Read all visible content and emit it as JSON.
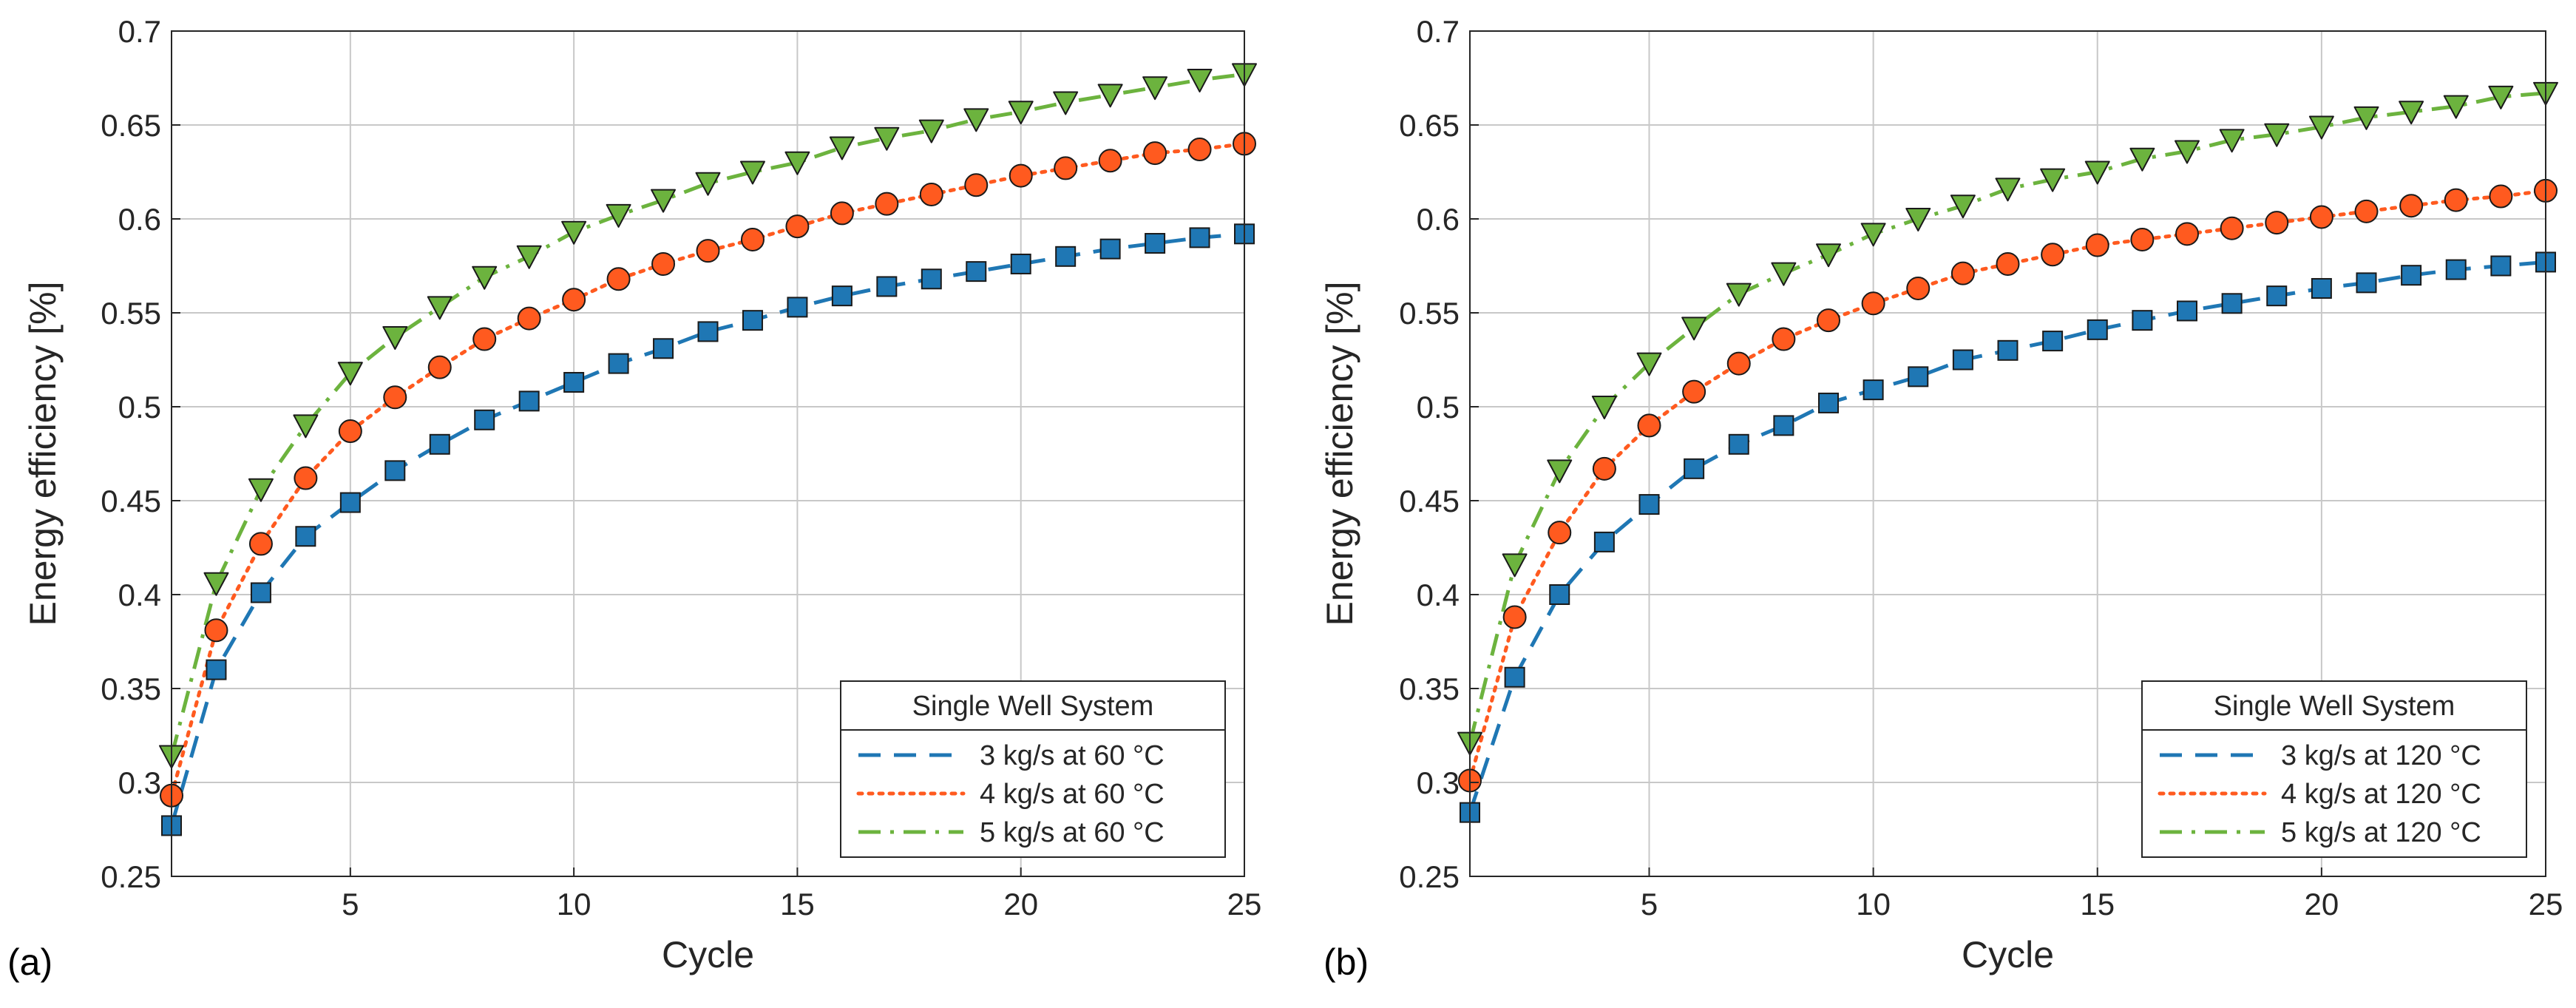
{
  "chart_data": [
    {
      "type": "line",
      "panel_label": "(a)",
      "xlabel": "Cycle",
      "ylabel": "Energy efficiency [%]",
      "xlim": [
        1,
        25
      ],
      "ylim": [
        0.25,
        0.7
      ],
      "xticks": [
        5,
        10,
        15,
        20,
        25
      ],
      "xtick_labels": [
        "5",
        "10",
        "15",
        "20",
        "25"
      ],
      "yticks": [
        0.25,
        0.3,
        0.35,
        0.4,
        0.45,
        0.5,
        0.55,
        0.6,
        0.65,
        0.7
      ],
      "ytick_labels": [
        "0.25",
        "0.3",
        "0.35",
        "0.4",
        "0.45",
        "0.5",
        "0.55",
        "0.6",
        "0.65",
        "0.7"
      ],
      "grid": true,
      "legend_title": "Single Well System",
      "legend_position": "bottom-right",
      "x": [
        1,
        2,
        3,
        4,
        5,
        6,
        7,
        8,
        9,
        10,
        11,
        12,
        13,
        14,
        15,
        16,
        17,
        18,
        19,
        20,
        21,
        22,
        23,
        24,
        25
      ],
      "series": [
        {
          "name": "3 kg/s at 60 °C",
          "color": "#1f77b4",
          "line_style": "dashed",
          "marker": "square",
          "values": [
            0.277,
            0.36,
            0.401,
            0.431,
            0.449,
            0.466,
            0.48,
            0.493,
            0.503,
            0.513,
            0.523,
            0.531,
            0.54,
            0.546,
            0.553,
            0.559,
            0.564,
            0.568,
            0.572,
            0.576,
            0.58,
            0.584,
            0.587,
            0.59,
            0.592
          ]
        },
        {
          "name": "4 kg/s at 60 °C",
          "color": "#ff5a1f",
          "line_style": "dotted",
          "marker": "circle",
          "values": [
            0.293,
            0.381,
            0.427,
            0.462,
            0.487,
            0.505,
            0.521,
            0.536,
            0.547,
            0.557,
            0.568,
            0.576,
            0.583,
            0.589,
            0.596,
            0.603,
            0.608,
            0.613,
            0.618,
            0.623,
            0.627,
            0.631,
            0.635,
            0.637,
            0.64
          ]
        },
        {
          "name": "5 kg/s at 60 °C",
          "color": "#6cb33e",
          "line_style": "dashdot",
          "marker": "triangle-down",
          "values": [
            0.314,
            0.406,
            0.456,
            0.49,
            0.518,
            0.537,
            0.553,
            0.569,
            0.58,
            0.593,
            0.602,
            0.61,
            0.619,
            0.625,
            0.63,
            0.638,
            0.643,
            0.647,
            0.653,
            0.657,
            0.662,
            0.666,
            0.67,
            0.674,
            0.677
          ]
        }
      ]
    },
    {
      "type": "line",
      "panel_label": "(b)",
      "xlabel": "Cycle",
      "ylabel": "Energy efficiency [%]",
      "xlim": [
        1,
        25
      ],
      "ylim": [
        0.25,
        0.7
      ],
      "xticks": [
        5,
        10,
        15,
        20,
        25
      ],
      "xtick_labels": [
        "5",
        "10",
        "15",
        "20",
        "25"
      ],
      "yticks": [
        0.25,
        0.3,
        0.35,
        0.4,
        0.45,
        0.5,
        0.55,
        0.6,
        0.65,
        0.7
      ],
      "ytick_labels": [
        "0.25",
        "0.3",
        "0.35",
        "0.4",
        "0.45",
        "0.5",
        "0.55",
        "0.6",
        "0.65",
        "0.7"
      ],
      "grid": true,
      "legend_title": "Single Well System",
      "legend_position": "bottom-right",
      "x": [
        1,
        2,
        3,
        4,
        5,
        6,
        7,
        8,
        9,
        10,
        11,
        12,
        13,
        14,
        15,
        16,
        17,
        18,
        19,
        20,
        21,
        22,
        23,
        24,
        25
      ],
      "series": [
        {
          "name": "3 kg/s at 120 °C",
          "color": "#1f77b4",
          "line_style": "dashed",
          "marker": "square",
          "values": [
            0.284,
            0.356,
            0.4,
            0.428,
            0.448,
            0.467,
            0.48,
            0.49,
            0.502,
            0.509,
            0.516,
            0.525,
            0.53,
            0.535,
            0.541,
            0.546,
            0.551,
            0.555,
            0.559,
            0.563,
            0.566,
            0.57,
            0.573,
            0.575,
            0.577
          ]
        },
        {
          "name": "4 kg/s at 120 °C",
          "color": "#ff5a1f",
          "line_style": "dotted",
          "marker": "circle",
          "values": [
            0.301,
            0.388,
            0.433,
            0.467,
            0.49,
            0.508,
            0.523,
            0.536,
            0.546,
            0.555,
            0.563,
            0.571,
            0.576,
            0.581,
            0.586,
            0.589,
            0.592,
            0.595,
            0.598,
            0.601,
            0.604,
            0.607,
            0.61,
            0.612,
            0.615
          ]
        },
        {
          "name": "5 kg/s at 120 °C",
          "color": "#6cb33e",
          "line_style": "dashdot",
          "marker": "triangle-down",
          "values": [
            0.321,
            0.416,
            0.466,
            0.5,
            0.523,
            0.542,
            0.56,
            0.571,
            0.581,
            0.592,
            0.6,
            0.607,
            0.616,
            0.621,
            0.625,
            0.632,
            0.636,
            0.642,
            0.645,
            0.649,
            0.654,
            0.657,
            0.66,
            0.665,
            0.667
          ]
        }
      ]
    }
  ]
}
